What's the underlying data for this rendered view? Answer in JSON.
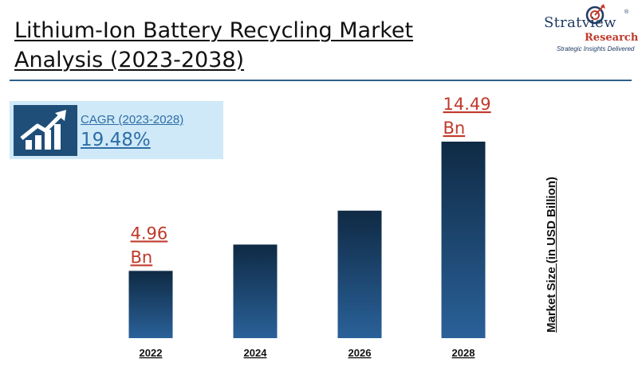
{
  "title": {
    "line1": "Lithium-Ion Battery Recycling Market",
    "line2": "Analysis (2023-2038)"
  },
  "logo": {
    "name": "Stratview",
    "sub": "Research",
    "tagline": "Strategic Insights Delivered",
    "reg": "®"
  },
  "cagr": {
    "label": "CAGR (2023-2028)",
    "value": "19.48%",
    "icon": "growth-chart-icon"
  },
  "colors": {
    "bar_top": "#0f2a44",
    "bar_bottom": "#2a6199",
    "value_label": "#c0392b",
    "accent": "#2f5f8a"
  },
  "chart_data": {
    "type": "bar",
    "categories": [
      "2022",
      "2024",
      "2026",
      "2028"
    ],
    "values": [
      4.96,
      6.9,
      9.4,
      14.49
    ],
    "value_labels": [
      "4.96\nBn",
      "",
      "",
      "14.49\nBn"
    ],
    "xlabel": "",
    "ylabel": "Market Size (in  USD Billion)",
    "ylim": [
      0,
      14.49
    ],
    "grid": false,
    "legend": "none"
  }
}
